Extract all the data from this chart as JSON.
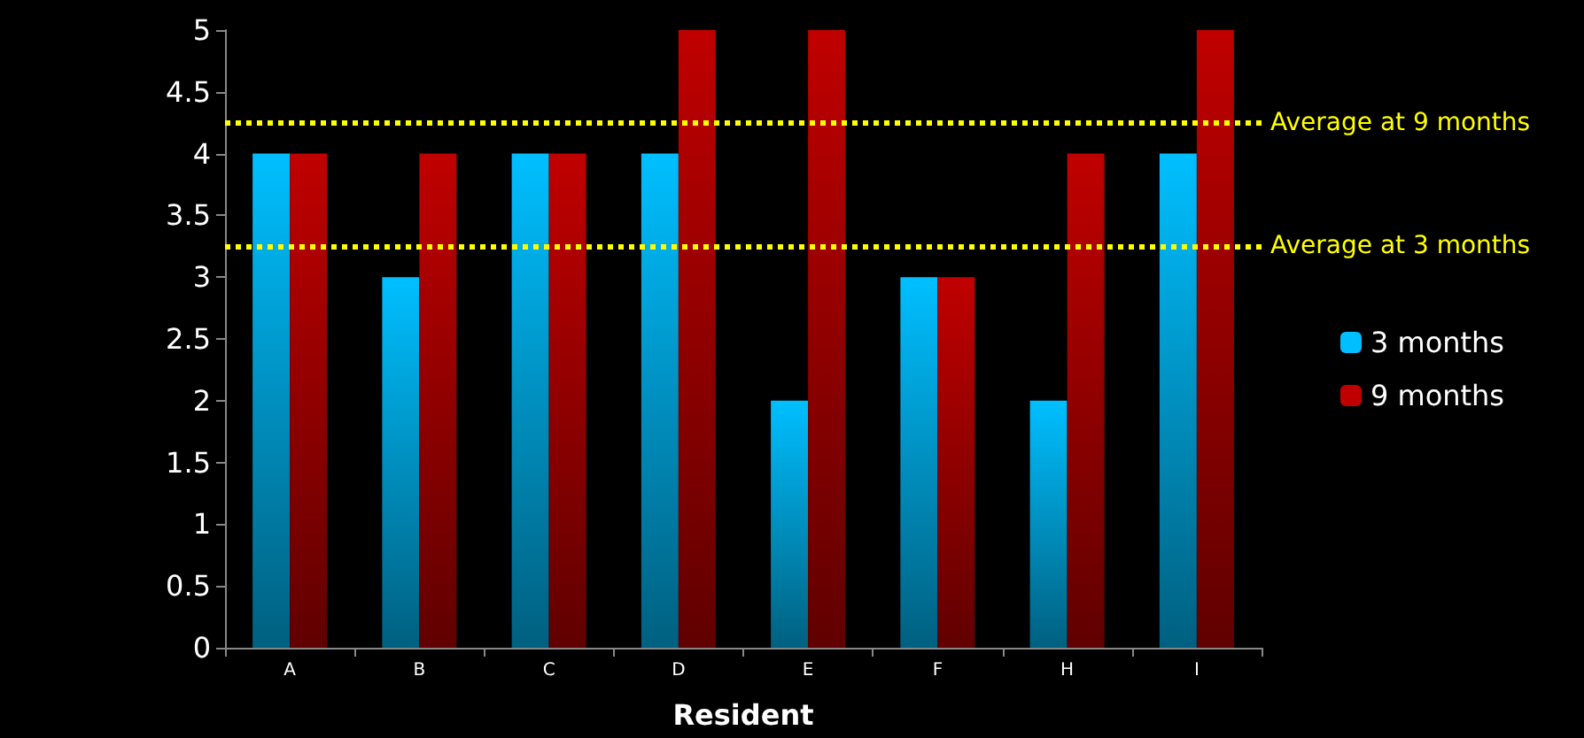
{
  "chart_data": {
    "type": "bar",
    "xlabel": "Resident",
    "categories": [
      "A",
      "B",
      "C",
      "D",
      "E",
      "F",
      "H",
      "I"
    ],
    "series": [
      {
        "name": "3 months",
        "color": "#00bfff",
        "values": [
          4,
          3,
          4,
          4,
          2,
          3,
          2,
          4
        ]
      },
      {
        "name": "9 months",
        "color": "#c00000",
        "values": [
          4,
          4,
          4,
          5,
          5,
          3,
          4,
          5
        ]
      }
    ],
    "ylim": [
      0,
      5
    ],
    "yticks": [
      0,
      0.5,
      1,
      1.5,
      2,
      2.5,
      3,
      3.5,
      4,
      4.5,
      5
    ],
    "grid": false,
    "legend": "right",
    "ref_lines": [
      {
        "axis": "y",
        "value": 4.25,
        "label": "Average at 9 months",
        "color": "#ffff00",
        "line_style": "dotted"
      },
      {
        "axis": "y",
        "value": 3.25,
        "label": "Average at 3 months",
        "color": "#ffff00",
        "line_style": "dotted"
      }
    ]
  }
}
